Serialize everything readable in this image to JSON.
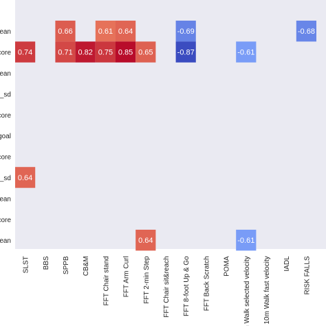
{
  "chart_data": {
    "type": "heatmap",
    "title": "",
    "xlabel": "",
    "ylabel": "",
    "x_categories": [
      "SLST",
      "BBS",
      "SPPB",
      "CB&M",
      "FFT Chair stand",
      "FFT Arm Curl",
      "FFT 2-min Step",
      "FFT Chair sit&reach",
      "FFT 8-foot Up & Go",
      "FFT Back Scratch",
      "POMA",
      "10m Walk selected velocity",
      "10m Walk fast velocity",
      "IADL",
      "RISK FALLS"
    ],
    "y_categories": [
      "ean",
      "core",
      "ean",
      "_sd",
      "core",
      "goal",
      "core",
      "_sd",
      "ean",
      "core",
      "ean"
    ],
    "cells": [
      {
        "row": 0,
        "col": 2,
        "value": 0.66,
        "label": "0.66"
      },
      {
        "row": 0,
        "col": 4,
        "value": 0.61,
        "label": "0.61"
      },
      {
        "row": 0,
        "col": 5,
        "value": 0.64,
        "label": "0.64"
      },
      {
        "row": 0,
        "col": 8,
        "value": -0.69,
        "label": "-0.69"
      },
      {
        "row": 0,
        "col": 14,
        "value": -0.68,
        "label": "-0.68"
      },
      {
        "row": 1,
        "col": 0,
        "value": 0.74,
        "label": "0.74"
      },
      {
        "row": 1,
        "col": 2,
        "value": 0.71,
        "label": "0.71"
      },
      {
        "row": 1,
        "col": 3,
        "value": 0.82,
        "label": "0.82"
      },
      {
        "row": 1,
        "col": 4,
        "value": 0.75,
        "label": "0.75"
      },
      {
        "row": 1,
        "col": 5,
        "value": 0.85,
        "label": "0.85"
      },
      {
        "row": 1,
        "col": 6,
        "value": 0.65,
        "label": "0.65"
      },
      {
        "row": 1,
        "col": 8,
        "value": -0.87,
        "label": "-0.87"
      },
      {
        "row": 1,
        "col": 11,
        "value": -0.61,
        "label": "-0.61"
      },
      {
        "row": 7,
        "col": 0,
        "value": 0.64,
        "label": "0.64"
      },
      {
        "row": 10,
        "col": 6,
        "value": 0.64,
        "label": "0.64"
      },
      {
        "row": 10,
        "col": 11,
        "value": -0.61,
        "label": "-0.61"
      }
    ],
    "grid": false,
    "legend": "none",
    "colors": {
      "background": "#eaeaf2",
      "colormap": "coolwarm",
      "positive_strong": "#b40426",
      "positive_weak": "#e8765c",
      "negative_strong": "#3b4cc0",
      "negative_weak": "#7b9ff9"
    }
  }
}
